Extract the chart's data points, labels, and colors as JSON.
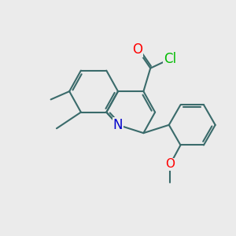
{
  "bg_color": "#ebebeb",
  "bond_color": "#3a6b6b",
  "bond_width": 1.5,
  "atom_colors": {
    "O": "#ff0000",
    "N": "#0000cc",
    "Cl": "#00bb00",
    "C": "#3a6b6b"
  },
  "font_size": 11,
  "fig_size": [
    3.0,
    3.0
  ],
  "dpi": 100
}
